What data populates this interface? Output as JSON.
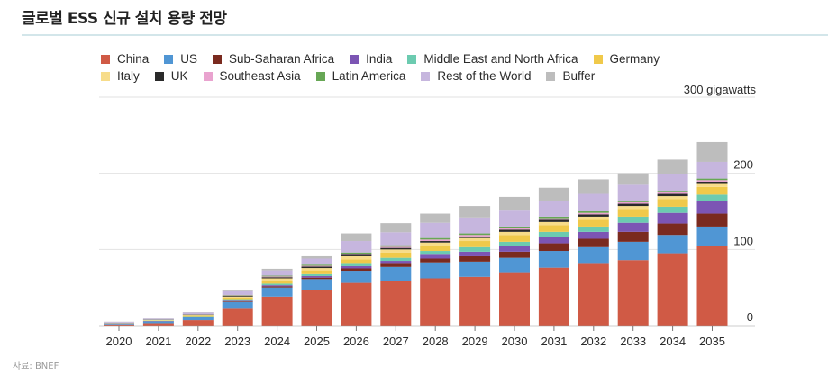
{
  "header": {
    "title": "글로벌 ESS 신규 설치 용량 전망"
  },
  "source": "자료: BNEF",
  "chart_data": {
    "type": "bar",
    "stacked": true,
    "title": "글로벌 ESS 신규 설치 용량 전망",
    "xlabel": "",
    "ylabel": "300 gigawatts",
    "unit_label": "300 gigawatts",
    "ylim": [
      0,
      300
    ],
    "yticks": [
      0,
      100,
      200
    ],
    "grid": true,
    "legend_position": "top",
    "categories": [
      "2020",
      "2021",
      "2022",
      "2023",
      "2024",
      "2025",
      "2026",
      "2027",
      "2028",
      "2029",
      "2030",
      "2031",
      "2032",
      "2033",
      "2034",
      "2035"
    ],
    "series": [
      {
        "name": "China",
        "color": "#d05a45",
        "values": [
          1.5,
          3,
          7,
          22,
          38,
          47,
          56,
          59,
          62,
          64,
          69,
          76,
          81,
          86,
          95,
          105
        ]
      },
      {
        "name": "US",
        "color": "#5096d4",
        "values": [
          1.2,
          2.5,
          4,
          9,
          12,
          14,
          16,
          18,
          21,
          20,
          20,
          22,
          22,
          24,
          24,
          25
        ]
      },
      {
        "name": "Sub-Saharan Africa",
        "color": "#7a2a1f",
        "values": [
          0.1,
          0.2,
          0.4,
          0.8,
          1.5,
          2,
          3,
          4,
          5,
          7,
          8,
          10,
          11,
          13,
          15,
          17
        ]
      },
      {
        "name": "India",
        "color": "#7c55b4",
        "values": [
          0.1,
          0.2,
          0.4,
          0.8,
          1.5,
          2,
          3,
          4,
          5,
          6,
          7,
          8,
          9,
          12,
          14,
          16
        ]
      },
      {
        "name": "Middle East and North Africa",
        "color": "#6ccbb0",
        "values": [
          0.1,
          0.3,
          0.5,
          1,
          2,
          2.5,
          3,
          4,
          5,
          6,
          6,
          7,
          7,
          8,
          8,
          9
        ]
      },
      {
        "name": "Germany",
        "color": "#f0c94a",
        "values": [
          0.3,
          0.6,
          1.2,
          3,
          4,
          5,
          6,
          7,
          7,
          8,
          9,
          9,
          9,
          10,
          10,
          10
        ]
      },
      {
        "name": "Italy",
        "color": "#f7dc8a",
        "values": [
          0.1,
          0.3,
          0.6,
          1.5,
          3,
          3,
          4,
          4,
          4,
          4,
          4,
          4,
          4,
          4,
          4,
          4
        ]
      },
      {
        "name": "UK",
        "color": "#2a2a2a",
        "values": [
          0.1,
          0.3,
          0.5,
          1,
          1.5,
          2,
          2,
          2,
          2,
          2,
          3,
          3,
          3,
          3,
          3,
          3
        ]
      },
      {
        "name": "Southeast Asia",
        "color": "#e9a3cf",
        "values": [
          0.05,
          0.1,
          0.2,
          0.5,
          1,
          1,
          1,
          1.5,
          2,
          2,
          2,
          2,
          2,
          2,
          2,
          2
        ]
      },
      {
        "name": "Latin America",
        "color": "#67a755",
        "values": [
          0.1,
          0.2,
          0.3,
          0.6,
          1,
          1.5,
          2,
          2,
          2,
          2,
          2,
          2,
          2,
          2,
          2,
          2
        ]
      },
      {
        "name": "Rest of the World",
        "color": "#c6b6de",
        "values": [
          1,
          1.2,
          2,
          5,
          7,
          8,
          15,
          17,
          20,
          21,
          21,
          21,
          23,
          21,
          22,
          22
        ]
      },
      {
        "name": "Buffer",
        "color": "#bdbdbd",
        "values": [
          0.3,
          0.3,
          0.5,
          1.5,
          2,
          3,
          10,
          12,
          12,
          15,
          18,
          17,
          19,
          15,
          19,
          26
        ]
      }
    ]
  }
}
